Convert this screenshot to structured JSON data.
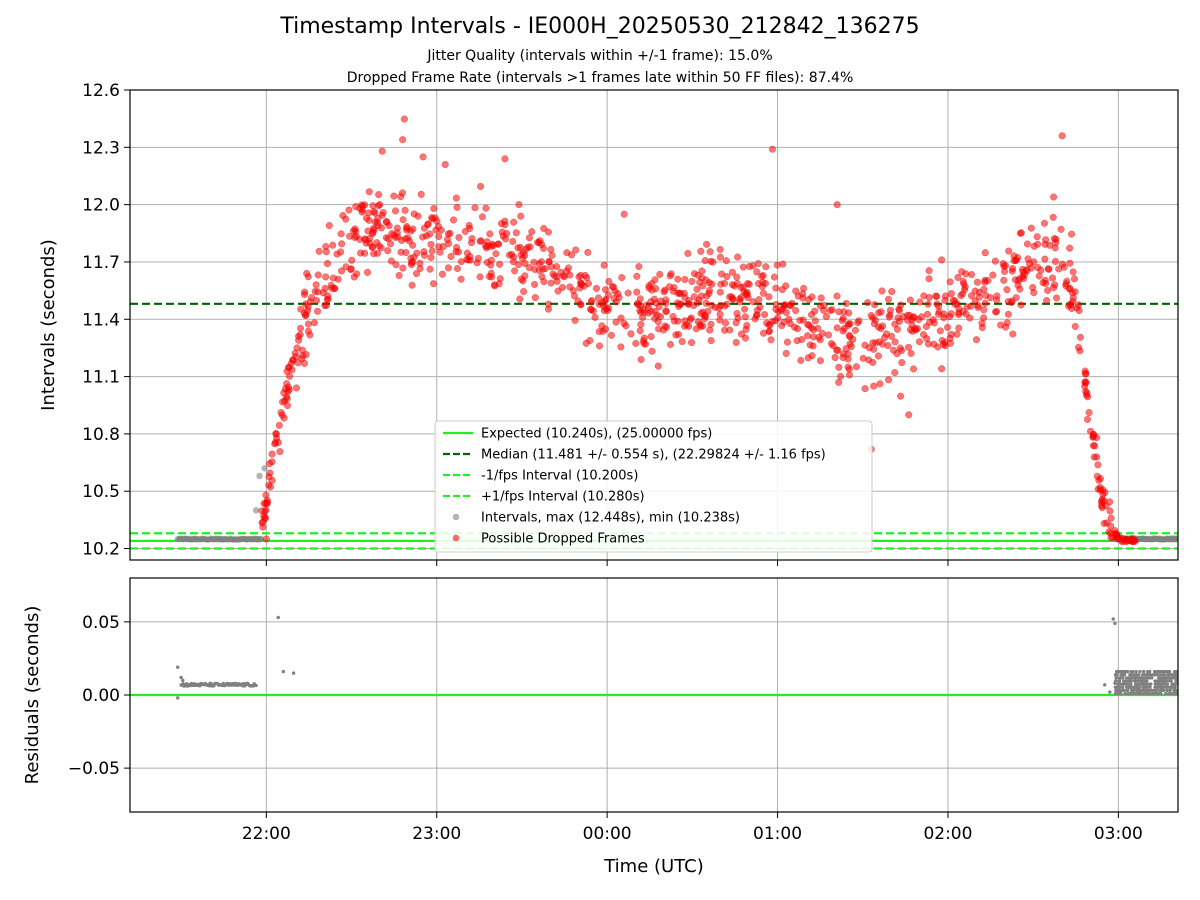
{
  "title": "Timestamp Intervals - IE000H_20250530_212842_136275",
  "subtitle_jitter": "Jitter Quality (intervals within +/-1 frame): 15.0%",
  "subtitle_dropped": "Dropped Frame Rate (intervals >1 frames late within 50 FF files): 87.4%",
  "chart_data": [
    {
      "type": "scatter",
      "panel": "intervals",
      "xlabel": "",
      "ylabel": "Intervals (seconds)",
      "x_unit": "hours since 00:00 UTC",
      "xlim": [
        -2.8,
        3.35
      ],
      "ylim": [
        10.14,
        12.6
      ],
      "yticks": [
        10.2,
        10.5,
        10.8,
        11.1,
        11.4,
        11.7,
        12.0,
        12.3,
        12.6
      ],
      "ytick_labels": [
        "10.2",
        "10.5",
        "10.8",
        "11.1",
        "11.4",
        "11.7",
        "12.0",
        "12.3",
        "12.6"
      ],
      "xticks": [
        -2,
        -1,
        0,
        1,
        2,
        3
      ],
      "xtick_labels": [
        "22:00",
        "23:00",
        "00:00",
        "01:00",
        "02:00",
        "03:00"
      ],
      "grid": true,
      "legend_position": "lower-center",
      "reference_lines": [
        {
          "label": "Expected (10.240s), (25.00000 fps)",
          "y": 10.24,
          "color": "#22ee22",
          "style": "solid"
        },
        {
          "label": "Median (11.481 +/- 0.554 s), (22.29824 +/- 1.16 fps)",
          "y": 11.481,
          "color": "#006400",
          "style": "dashed"
        },
        {
          "label": "-1/fps Interval (10.200s)",
          "y": 10.2,
          "color": "#22ee22",
          "style": "dashed"
        },
        {
          "label": "+1/fps Interval (10.280s)",
          "y": 10.28,
          "color": "#22ee22",
          "style": "dashed"
        }
      ],
      "series": [
        {
          "name": "Intervals, max (12.448s), min (10.238s)",
          "color": "#808080",
          "segments": [
            {
              "x_start": -2.52,
              "x_end": -2.03,
              "y": 10.249
            },
            {
              "x_start": 2.98,
              "x_end": 3.35,
              "y": 10.25
            }
          ],
          "points": [
            [
              -2.06,
              10.4
            ],
            [
              -2.04,
              10.58
            ],
            [
              -2.01,
              10.62
            ]
          ]
        },
        {
          "name": "Possible Dropped Frames",
          "color": "#ff0000",
          "trend": [
            [
              -2.03,
              10.3
            ],
            [
              -1.95,
              10.75
            ],
            [
              -1.85,
              11.1
            ],
            [
              -1.75,
              11.45
            ],
            [
              -1.6,
              11.72
            ],
            [
              -1.4,
              11.88
            ],
            [
              -1.1,
              11.82
            ],
            [
              -0.8,
              11.78
            ],
            [
              -0.5,
              11.72
            ],
            [
              -0.2,
              11.62
            ],
            [
              0.0,
              11.45
            ],
            [
              0.2,
              11.42
            ],
            [
              0.4,
              11.45
            ],
            [
              0.6,
              11.52
            ],
            [
              0.8,
              11.5
            ],
            [
              1.0,
              11.45
            ],
            [
              1.2,
              11.38
            ],
            [
              1.4,
              11.3
            ],
            [
              1.6,
              11.3
            ],
            [
              1.8,
              11.38
            ],
            [
              2.0,
              11.48
            ],
            [
              2.2,
              11.55
            ],
            [
              2.4,
              11.6
            ],
            [
              2.55,
              11.68
            ],
            [
              2.68,
              11.72
            ],
            [
              2.75,
              11.5
            ],
            [
              2.82,
              11.0
            ],
            [
              2.88,
              10.6
            ],
            [
              2.93,
              10.38
            ],
            [
              3.0,
              10.25
            ],
            [
              3.05,
              10.24
            ]
          ],
          "spread": 0.22,
          "x_range": [
            -2.03,
            3.1
          ],
          "highlighted_points": [
            [
              -1.32,
              12.28
            ],
            [
              -1.2,
              12.34
            ],
            [
              -1.08,
              12.25
            ],
            [
              -0.95,
              12.21
            ],
            [
              -0.6,
              12.24
            ],
            [
              0.97,
              12.29
            ],
            [
              1.35,
              12.0
            ],
            [
              2.62,
              12.04
            ],
            [
              2.67,
              12.36
            ],
            [
              -1.19,
              12.448
            ],
            [
              0.1,
              11.95
            ],
            [
              -2.0,
              10.25
            ],
            [
              1.55,
              10.72
            ],
            [
              1.77,
              10.9
            ]
          ]
        }
      ]
    },
    {
      "type": "scatter",
      "panel": "residuals",
      "xlabel": "Time (UTC)",
      "ylabel": "Residuals (seconds)",
      "x_unit": "hours since 00:00 UTC",
      "xlim": [
        -2.8,
        3.35
      ],
      "ylim": [
        -0.08,
        0.08
      ],
      "yticks": [
        -0.05,
        0.0,
        0.05
      ],
      "ytick_labels": [
        "−0.05",
        "0.00",
        "0.05"
      ],
      "xticks": [
        -2,
        -1,
        0,
        1,
        2,
        3
      ],
      "xtick_labels": [
        "22:00",
        "23:00",
        "00:00",
        "01:00",
        "02:00",
        "03:00"
      ],
      "grid": true,
      "reference_lines": [
        {
          "y": 0.0,
          "color": "#22ee22",
          "style": "solid"
        }
      ],
      "series": [
        {
          "color": "#808080",
          "band_segments": [
            {
              "x_start": -2.5,
              "x_end": -2.06,
              "y": 0.007
            },
            {
              "x_start": 2.98,
              "x_end": 3.35,
              "y_min": 0.001,
              "y_max": 0.016
            }
          ],
          "points": [
            [
              -2.52,
              0.019
            ],
            [
              -2.52,
              -0.002
            ],
            [
              -2.5,
              0.012
            ],
            [
              -2.49,
              0.01
            ],
            [
              -1.93,
              0.053
            ],
            [
              -1.9,
              0.016
            ],
            [
              -1.84,
              0.015
            ],
            [
              2.92,
              0.007
            ],
            [
              2.95,
              0.002
            ],
            [
              2.98,
              0.008
            ],
            [
              2.97,
              0.052
            ],
            [
              2.98,
              0.049
            ]
          ]
        }
      ]
    }
  ]
}
